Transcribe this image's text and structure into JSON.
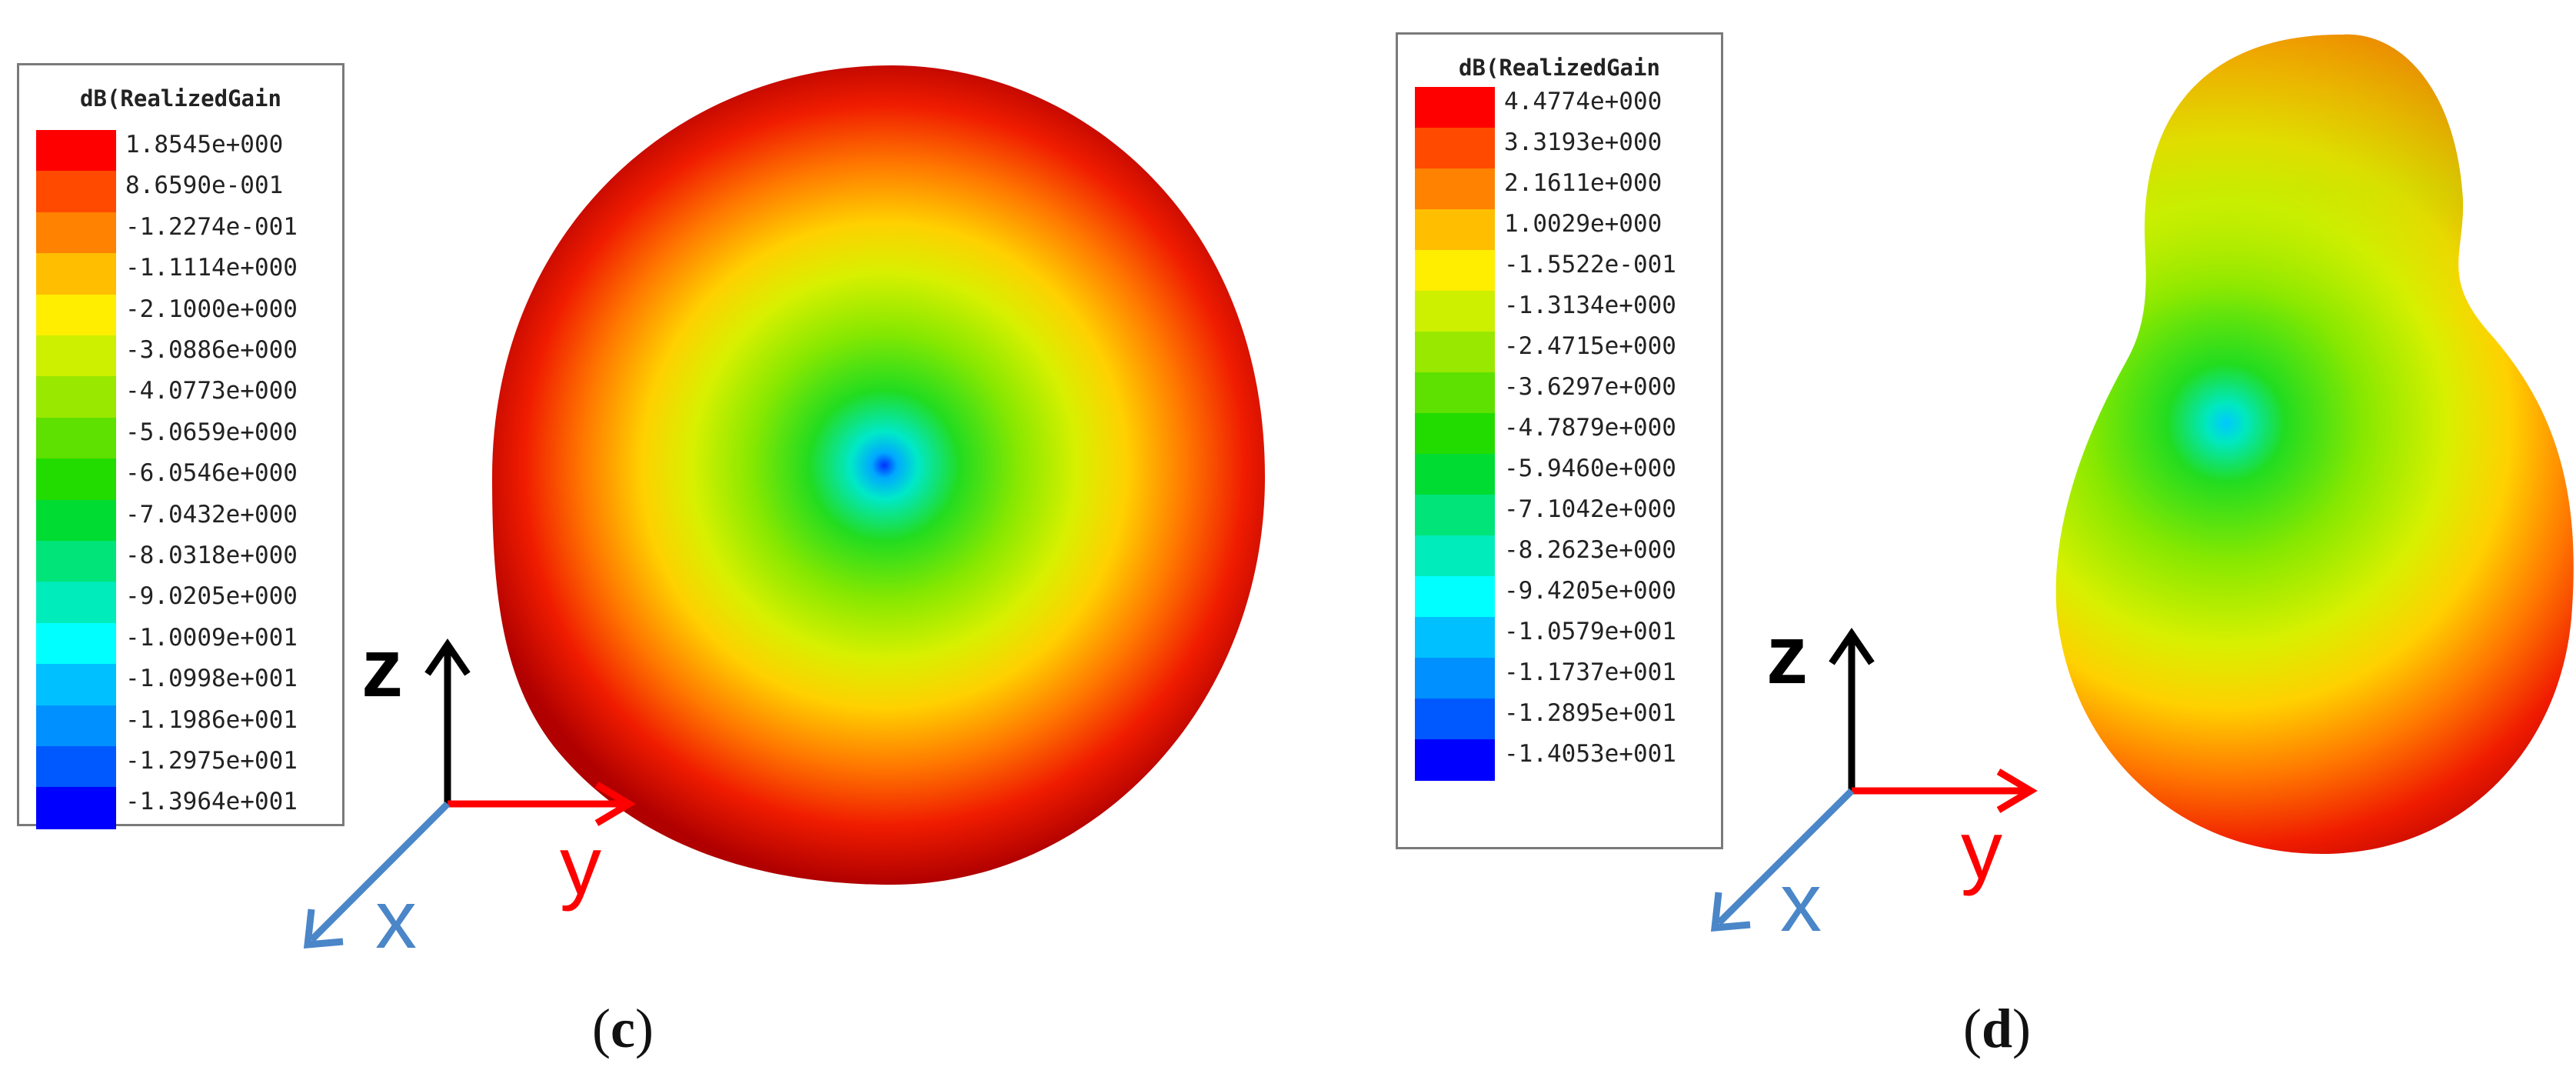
{
  "panels": [
    {
      "caption_open": "(",
      "caption_letter": "c",
      "caption_close": ")",
      "legend": {
        "title": "dB(RealizedGain",
        "labels": [
          "1.8545e+000",
          "8.6590e-001",
          "-1.2274e-001",
          "-1.1114e+000",
          "-2.1000e+000",
          "-3.0886e+000",
          "-4.0773e+000",
          "-5.0659e+000",
          "-6.0546e+000",
          "-7.0432e+000",
          "-8.0318e+000",
          "-9.0205e+000",
          "-1.0009e+001",
          "-1.0998e+001",
          "-1.1986e+001",
          "-1.2975e+001",
          "-1.3964e+001"
        ]
      },
      "axes": {
        "z": "z",
        "y": "y",
        "x": "x"
      }
    },
    {
      "caption_open": "(",
      "caption_letter": "d",
      "caption_close": ")",
      "legend": {
        "title": "dB(RealizedGain",
        "labels": [
          "4.4774e+000",
          "3.3193e+000",
          "2.1611e+000",
          "1.0029e+000",
          "-1.5522e-001",
          "-1.3134e+000",
          "-2.4715e+000",
          "-3.6297e+000",
          "-4.7879e+000",
          "-5.9460e+000",
          "-7.1042e+000",
          "-8.2623e+000",
          "-9.4205e+000",
          "-1.0579e+001",
          "-1.1737e+001",
          "-1.2895e+001",
          "-1.4053e+001"
        ]
      },
      "axes": {
        "z": "z",
        "y": "y",
        "x": "x"
      }
    }
  ],
  "colorscale": [
    "#ff0000",
    "#ff4a00",
    "#ff8200",
    "#ffbe00",
    "#ffee00",
    "#ccf000",
    "#99e800",
    "#5ee000",
    "#22dc00",
    "#00dc32",
    "#00e47a",
    "#00ecba",
    "#00ffff",
    "#00c0ff",
    "#0090ff",
    "#0058ff",
    "#0000ff"
  ],
  "axis_colors": {
    "z": "#000000",
    "y": "#ff0000",
    "x": "#4a86c8"
  }
}
